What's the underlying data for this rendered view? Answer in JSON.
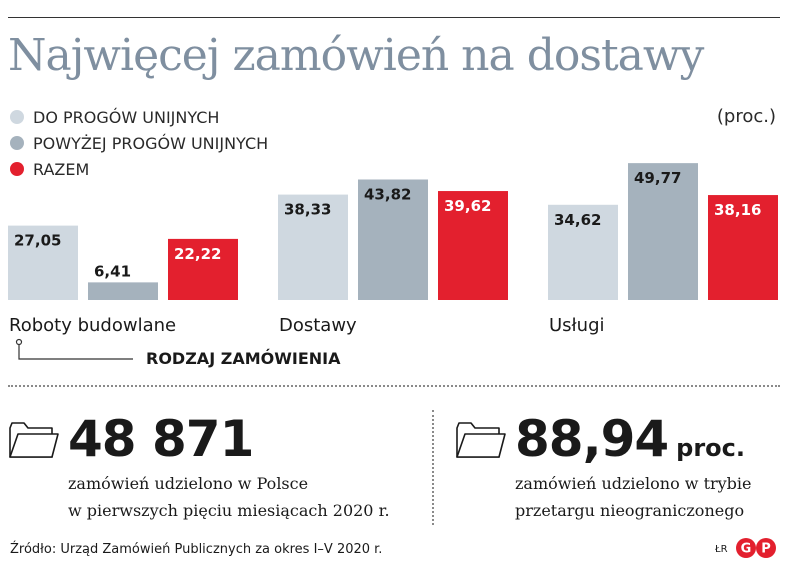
{
  "header": {
    "title": "Najwięcej zamówień na dostawy",
    "unit": "(proc.)"
  },
  "legend": [
    {
      "label": "DO PROGÓW UNIJNYCH",
      "color": "#cfd8e0"
    },
    {
      "label": "POWYŻEJ PROGÓW UNIJNYCH",
      "color": "#a5b2bd"
    },
    {
      "label": "RAZEM",
      "color": "#e3202e"
    }
  ],
  "chart_data": {
    "type": "bar",
    "categories": [
      "Roboty budowlane",
      "Dostawy",
      "Usługi"
    ],
    "series": [
      {
        "name": "DO PROGÓW UNIJNYCH",
        "values": [
          27.05,
          38.33,
          34.62
        ],
        "labels": [
          "27,05",
          "38,33",
          "34,62"
        ],
        "color": "#cfd8e0"
      },
      {
        "name": "POWYŻEJ PROGÓW UNIJNYCH",
        "values": [
          6.41,
          43.82,
          49.77
        ],
        "labels": [
          "6,41",
          "43,82",
          "49,77"
        ],
        "color": "#a5b2bd"
      },
      {
        "name": "RAZEM",
        "values": [
          22.22,
          39.62,
          38.16
        ],
        "labels": [
          "22,22",
          "39,62",
          "38,16"
        ],
        "color": "#e3202e"
      }
    ],
    "title": "Najwięcej zamówień na dostawy",
    "xlabel": "RODZAJ ZAMÓWIENIA",
    "ylabel": "(proc.)",
    "ylim": [
      0,
      55
    ],
    "grid": false,
    "legend_position": "top-left"
  },
  "stats": [
    {
      "value": "48 871",
      "suffix": "",
      "line1": "zamówień udzielono w Polsce",
      "line2": "w pierwszych pięciu miesiącach 2020 r."
    },
    {
      "value": "88,94",
      "suffix": "proc.",
      "line1": "zamówień udzielono w trybie",
      "line2": "przetargu nieograniczonego"
    }
  ],
  "footer": {
    "source": "Źródło: Urząd Zamówień Publicznych za okres I–V 2020 r.",
    "author": "ŁR",
    "logo_text": "GP"
  }
}
